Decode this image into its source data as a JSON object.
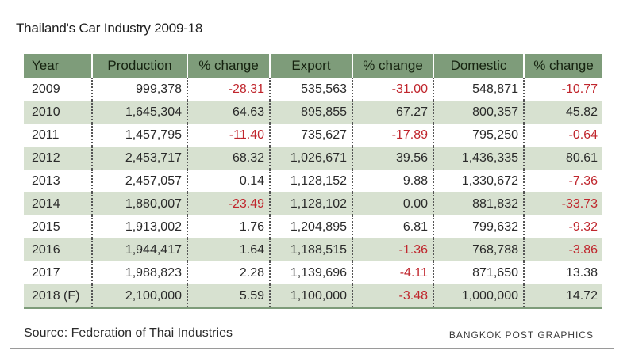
{
  "chart_data": {
    "type": "table",
    "title": "Thailand's Car Industry 2009-18",
    "columns": [
      "Year",
      "Production",
      "% change",
      "Export",
      "% change",
      "Domestic",
      "% change"
    ],
    "rows": [
      [
        "2009",
        "999,378",
        "-28.31",
        "535,563",
        "-31.00",
        "548,871",
        "-10.77"
      ],
      [
        "2010",
        "1,645,304",
        "64.63",
        "895,855",
        "67.27",
        "800,357",
        "45.82"
      ],
      [
        "2011",
        "1,457,795",
        "-11.40",
        "735,627",
        "-17.89",
        "795,250",
        "-0.64"
      ],
      [
        "2012",
        "2,453,717",
        "68.32",
        "1,026,671",
        "39.56",
        "1,436,335",
        "80.61"
      ],
      [
        "2013",
        "2,457,057",
        "0.14",
        "1,128,152",
        "9.88",
        "1,330,672",
        "-7.36"
      ],
      [
        "2014",
        "1,880,007",
        "-23.49",
        "1,128,102",
        "0.00",
        "881,832",
        "-33.73"
      ],
      [
        "2015",
        "1,913,002",
        "1.76",
        "1,204,895",
        "6.81",
        "799,632",
        "-9.32"
      ],
      [
        "2016",
        "1,944,417",
        "1.64",
        "1,188,515",
        "-1.36",
        "768,788",
        "-3.86"
      ],
      [
        "2017",
        "1,988,823",
        "2.28",
        "1,139,696",
        "-4.11",
        "871,650",
        "13.38"
      ],
      [
        "2018 (F)",
        "2,100,000",
        "5.59",
        "1,100,000",
        "-3.48",
        "1,000,000",
        "14.72"
      ]
    ],
    "source": "Source: Federation of Thai Industries",
    "credit": "BANGKOK POST GRAPHICS"
  },
  "colors": {
    "header_bg": "#7e9c7a",
    "row_shade": "#d7e1d0",
    "negative": "#c0262d"
  }
}
